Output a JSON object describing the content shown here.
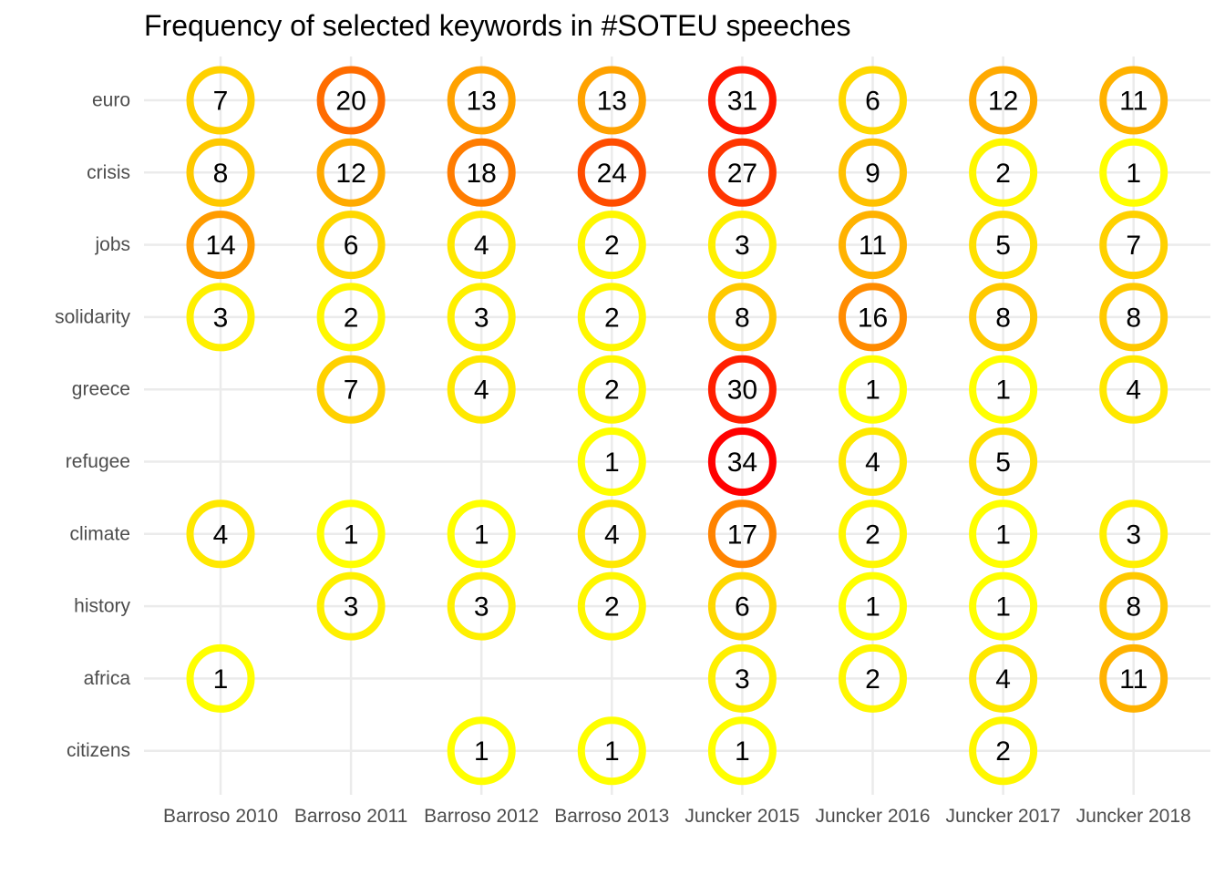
{
  "chart_data": {
    "type": "heatmap",
    "title": "Frequency of selected keywords in #SOTEU speeches",
    "xlabel": "",
    "ylabel": "",
    "x": [
      "Barroso 2010",
      "Barroso 2011",
      "Barroso 2012",
      "Barroso 2013",
      "Juncker 2015",
      "Juncker 2016",
      "Juncker 2017",
      "Juncker 2018"
    ],
    "y": [
      "euro",
      "crisis",
      "jobs",
      "solidarity",
      "greece",
      "refugee",
      "climate",
      "history",
      "africa",
      "citizens"
    ],
    "values": [
      [
        7,
        20,
        13,
        13,
        31,
        6,
        12,
        11
      ],
      [
        8,
        12,
        18,
        24,
        27,
        9,
        2,
        1
      ],
      [
        14,
        6,
        4,
        2,
        3,
        11,
        5,
        7
      ],
      [
        3,
        2,
        3,
        2,
        8,
        16,
        8,
        8
      ],
      [
        null,
        7,
        4,
        2,
        30,
        1,
        1,
        4
      ],
      [
        null,
        null,
        null,
        1,
        34,
        4,
        5,
        null
      ],
      [
        4,
        1,
        1,
        4,
        17,
        2,
        1,
        3
      ],
      [
        null,
        3,
        3,
        2,
        6,
        1,
        1,
        8
      ],
      [
        1,
        null,
        null,
        null,
        3,
        2,
        4,
        11
      ],
      [
        null,
        null,
        1,
        1,
        1,
        null,
        2,
        null
      ]
    ],
    "color_scale": {
      "low": "#FFFF00",
      "high": "#FF0000",
      "min": 1,
      "max": 34
    },
    "grid": true,
    "legend": "none"
  }
}
